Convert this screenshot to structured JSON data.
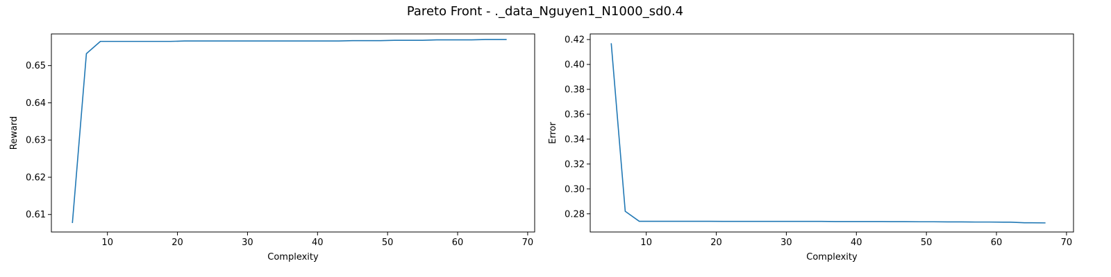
{
  "figure": {
    "suptitle": "Pareto Front - ._data_Nguyen1_N1000_sd0.4"
  },
  "chart_data": [
    {
      "type": "line",
      "title": "",
      "xlabel": "Complexity",
      "ylabel": "Reward",
      "xlim": [
        2,
        71
      ],
      "ylim": [
        0.6053,
        0.6585
      ],
      "xticks": [
        10,
        20,
        30,
        40,
        50,
        60,
        70
      ],
      "yticks": [
        0.61,
        0.62,
        0.63,
        0.64,
        0.65
      ],
      "xtick_labels": [
        "10",
        "20",
        "30",
        "40",
        "50",
        "60",
        "70"
      ],
      "ytick_labels": [
        "0.61",
        "0.62",
        "0.63",
        "0.64",
        "0.65"
      ],
      "grid": false,
      "color": "#1f77b4",
      "x": [
        5,
        7,
        9,
        11,
        13,
        15,
        17,
        19,
        21,
        23,
        25,
        27,
        29,
        31,
        33,
        35,
        37,
        39,
        41,
        43,
        45,
        47,
        49,
        51,
        53,
        55,
        57,
        59,
        61,
        62,
        64,
        65,
        67
      ],
      "y": [
        0.6077,
        0.6532,
        0.6565,
        0.6565,
        0.6565,
        0.6565,
        0.6565,
        0.6565,
        0.6566,
        0.6566,
        0.6566,
        0.6566,
        0.6566,
        0.6566,
        0.6566,
        0.6566,
        0.6566,
        0.6566,
        0.6566,
        0.6566,
        0.6567,
        0.6567,
        0.6567,
        0.6568,
        0.6568,
        0.6568,
        0.6569,
        0.6569,
        0.6569,
        0.6569,
        0.657,
        0.657,
        0.657
      ]
    },
    {
      "type": "line",
      "title": "",
      "xlabel": "Complexity",
      "ylabel": "Error",
      "xlim": [
        2,
        71
      ],
      "ylim": [
        0.2654,
        0.4245
      ],
      "xticks": [
        10,
        20,
        30,
        40,
        50,
        60,
        70
      ],
      "yticks": [
        0.28,
        0.3,
        0.32,
        0.34,
        0.36,
        0.38,
        0.4,
        0.42
      ],
      "xtick_labels": [
        "10",
        "20",
        "30",
        "40",
        "50",
        "60",
        "70"
      ],
      "ytick_labels": [
        "0.28",
        "0.30",
        "0.32",
        "0.34",
        "0.36",
        "0.38",
        "0.40",
        "0.42"
      ],
      "grid": false,
      "color": "#1f77b4",
      "x": [
        5,
        7,
        9,
        11,
        13,
        15,
        17,
        19,
        21,
        23,
        25,
        27,
        29,
        31,
        33,
        35,
        37,
        39,
        41,
        43,
        45,
        47,
        49,
        51,
        53,
        55,
        57,
        59,
        61,
        62,
        64,
        65,
        67
      ],
      "y": [
        0.417,
        0.282,
        0.274,
        0.274,
        0.274,
        0.274,
        0.274,
        0.274,
        0.2739,
        0.2739,
        0.2739,
        0.2739,
        0.2739,
        0.2739,
        0.2739,
        0.2739,
        0.2738,
        0.2738,
        0.2738,
        0.2738,
        0.2737,
        0.2737,
        0.2736,
        0.2736,
        0.2735,
        0.2735,
        0.2734,
        0.2734,
        0.2733,
        0.2733,
        0.2728,
        0.2728,
        0.2727
      ]
    }
  ]
}
